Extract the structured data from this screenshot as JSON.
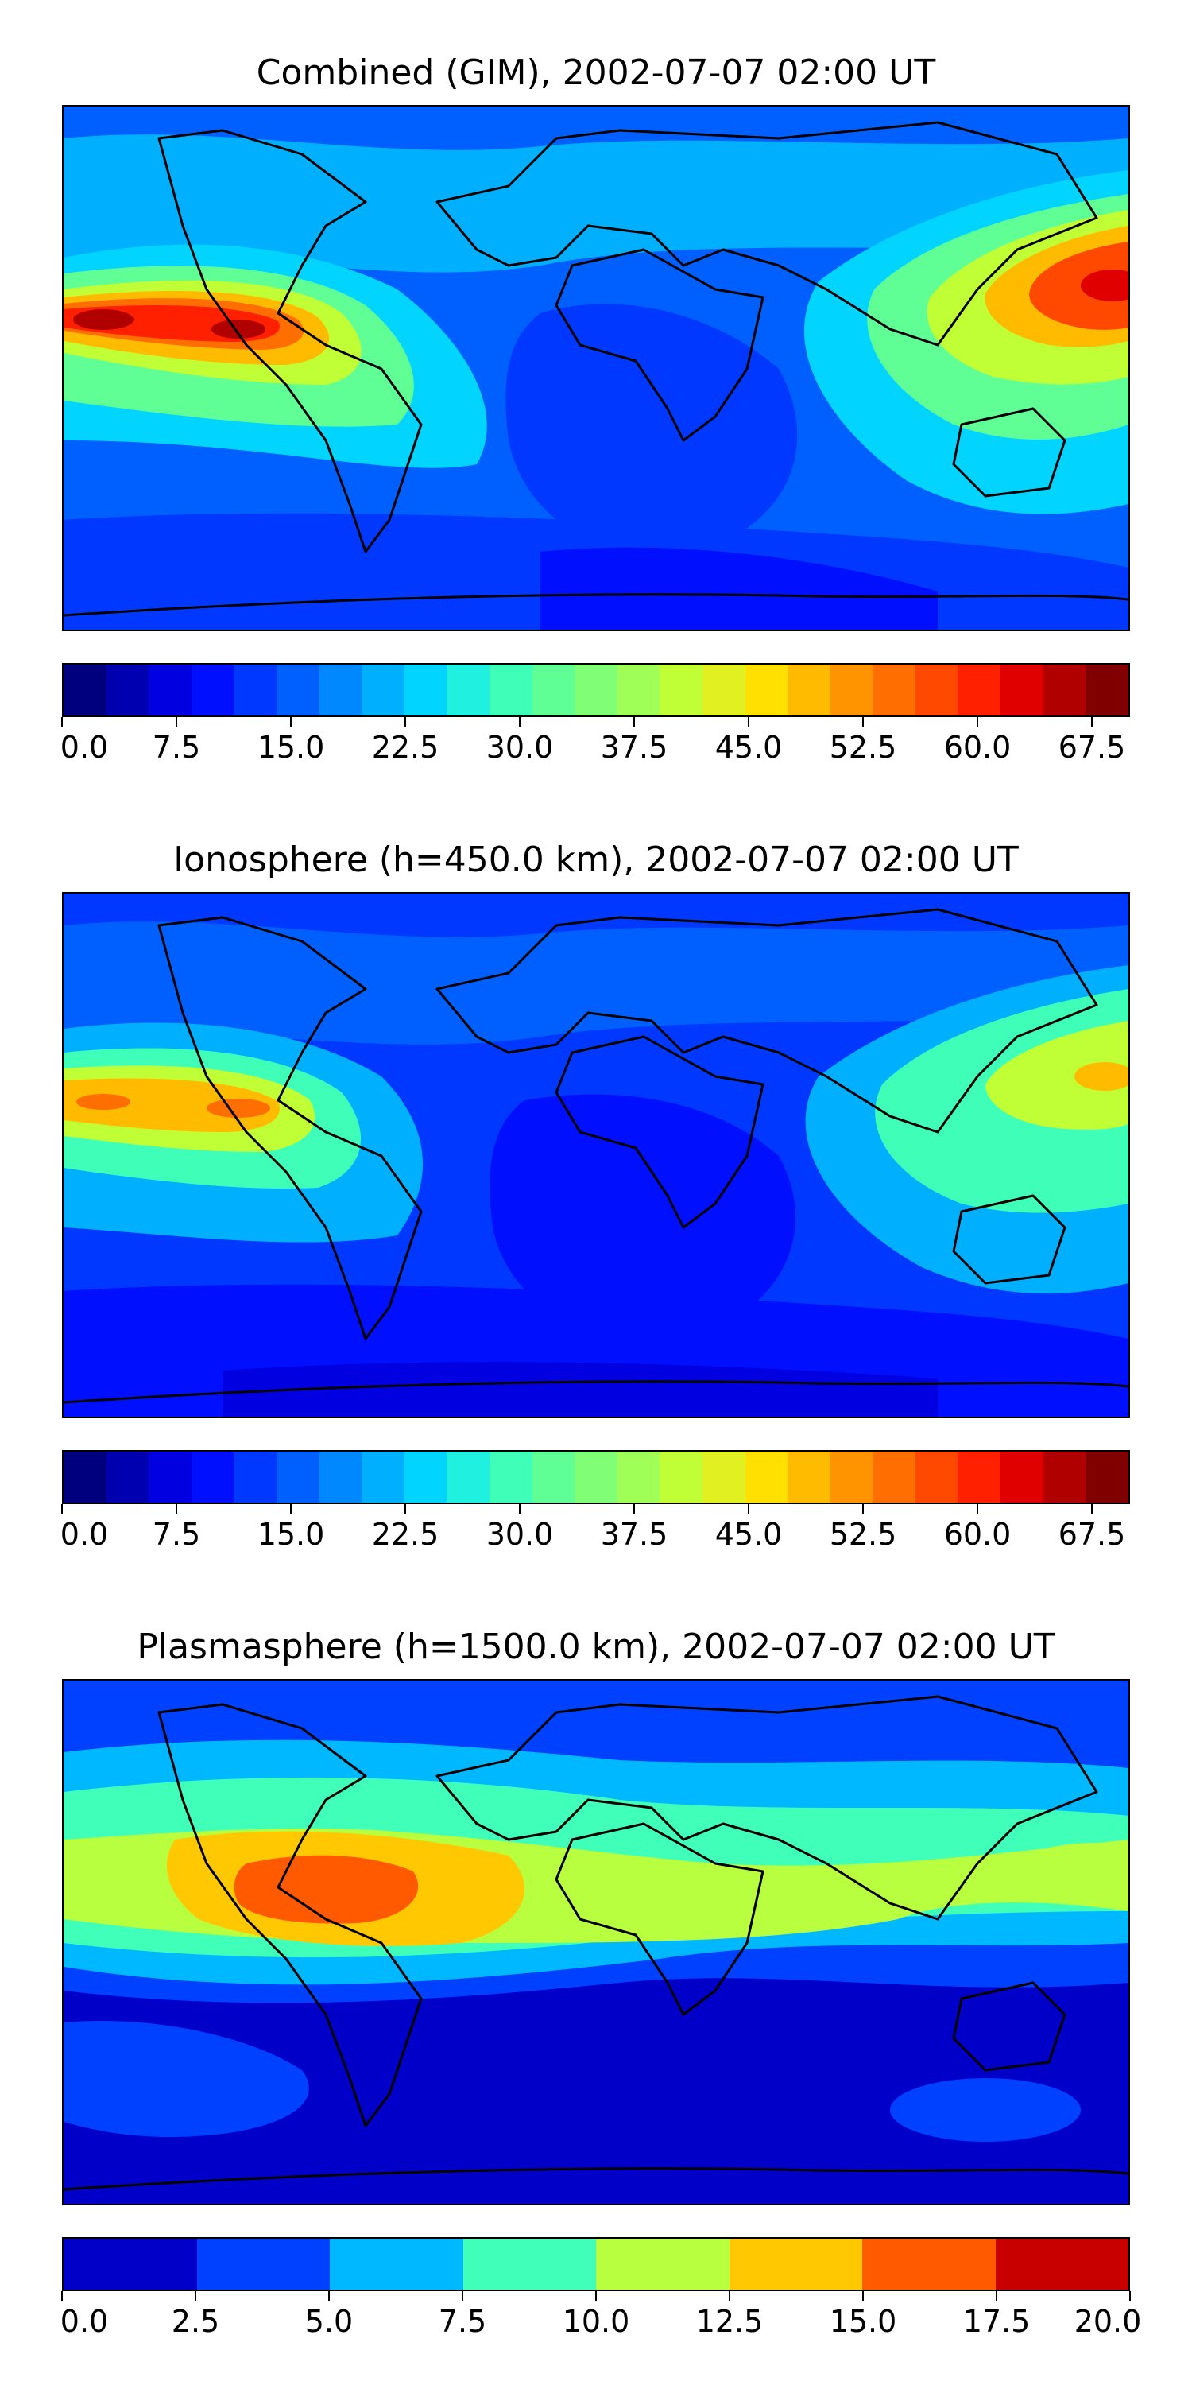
{
  "panels": [
    {
      "title": "Combined (GIM), 2002-07-07 02:00 UT",
      "colorbar": {
        "colors": [
          "#00007f",
          "#0000b0",
          "#0000e0",
          "#0010ff",
          "#0038ff",
          "#0060ff",
          "#0088ff",
          "#00b0ff",
          "#00d4ff",
          "#1ff0e0",
          "#3fffb8",
          "#60ff96",
          "#80ff76",
          "#a0ff56",
          "#c0ff36",
          "#e0f020",
          "#ffe000",
          "#ffbb00",
          "#ff9400",
          "#ff6e00",
          "#ff4800",
          "#ff2000",
          "#e00000",
          "#b00000",
          "#800000"
        ],
        "tick_labels": [
          "0.0",
          "7.5",
          "15.0",
          "22.5",
          "30.0",
          "37.5",
          "45.0",
          "52.5",
          "60.0",
          "67.5"
        ],
        "tick_values": [
          0,
          7.5,
          15,
          22.5,
          30,
          37.5,
          45,
          52.5,
          60,
          67.5
        ],
        "range": [
          0,
          70
        ]
      }
    },
    {
      "title": "Ionosphere  (h=450.0 km), 2002-07-07 02:00 UT",
      "colorbar": {
        "colors": [
          "#00007f",
          "#0000b0",
          "#0000e0",
          "#0010ff",
          "#0038ff",
          "#0060ff",
          "#0088ff",
          "#00b0ff",
          "#00d4ff",
          "#1ff0e0",
          "#3fffb8",
          "#60ff96",
          "#80ff76",
          "#a0ff56",
          "#c0ff36",
          "#e0f020",
          "#ffe000",
          "#ffbb00",
          "#ff9400",
          "#ff6e00",
          "#ff4800",
          "#ff2000",
          "#e00000",
          "#b00000",
          "#800000"
        ],
        "tick_labels": [
          "0.0",
          "7.5",
          "15.0",
          "22.5",
          "30.0",
          "37.5",
          "45.0",
          "52.5",
          "60.0",
          "67.5"
        ],
        "tick_values": [
          0,
          7.5,
          15,
          22.5,
          30,
          37.5,
          45,
          52.5,
          60,
          67.5
        ],
        "range": [
          0,
          70
        ]
      }
    },
    {
      "title": "Plasmasphere (h=1500.0 km), 2002-07-07 02:00 UT",
      "colorbar": {
        "colors": [
          "#0000c8",
          "#0040ff",
          "#00b8ff",
          "#40ffb8",
          "#b8ff40",
          "#ffc800",
          "#ff5a00",
          "#c80000"
        ],
        "tick_labels": [
          "0.0",
          "2.5",
          "5.0",
          "7.5",
          "10.0",
          "12.5",
          "15.0",
          "17.5",
          "20.0"
        ],
        "tick_values": [
          0,
          2.5,
          5,
          7.5,
          10,
          12.5,
          15,
          17.5,
          20
        ],
        "range": [
          0,
          20
        ]
      }
    }
  ],
  "land_outline_color": "#000000"
}
